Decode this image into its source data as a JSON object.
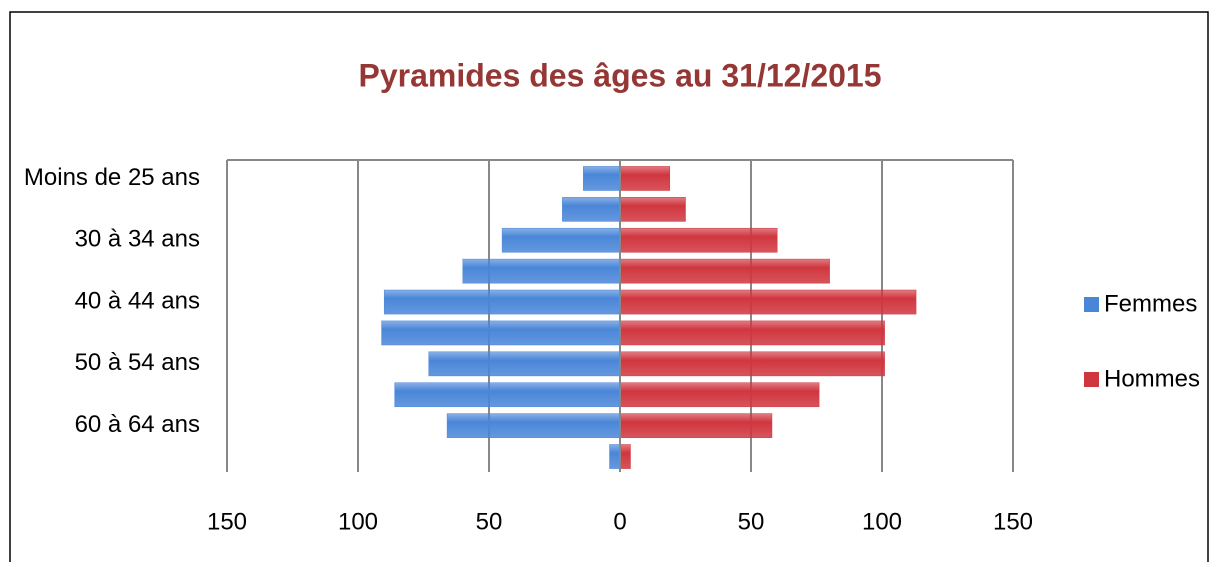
{
  "chart_data": {
    "type": "pyramid",
    "title": "Pyramides des âges au 31/12/2015",
    "categories": [
      "Moins de 25 ans",
      null,
      "30 à 34 ans",
      null,
      "40 à 44 ans",
      null,
      "50 à 54 ans",
      null,
      "60 à 64 ans",
      null
    ],
    "series": [
      {
        "name": "Femmes",
        "color": "#4a86d8",
        "values": [
          -14,
          -22,
          -45,
          -60,
          -90,
          -91,
          -73,
          -86,
          -66,
          -4
        ]
      },
      {
        "name": "Hommes",
        "color": "#d0363f",
        "values": [
          19,
          25,
          60,
          80,
          113,
          101,
          101,
          76,
          58,
          4
        ]
      }
    ],
    "xlim": [
      -150,
      150
    ],
    "xticks": [
      {
        "value": -150,
        "label": "150"
      },
      {
        "value": -100,
        "label": "100"
      },
      {
        "value": -50,
        "label": "50"
      },
      0,
      50,
      100,
      150
    ],
    "grid": true,
    "legend": "right"
  }
}
